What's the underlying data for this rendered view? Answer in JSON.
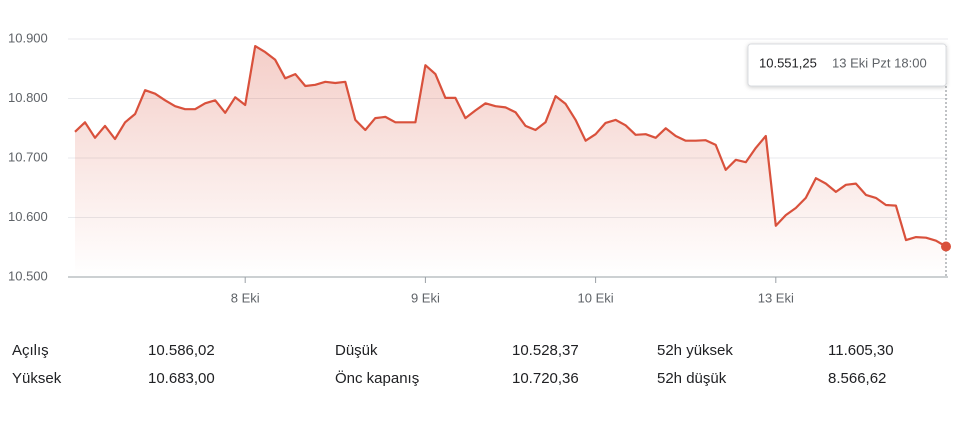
{
  "chart_data": {
    "type": "line",
    "color": "#d9513c",
    "grid": true,
    "categories": [
      null,
      null,
      null,
      null,
      null,
      null,
      null,
      null,
      null,
      null,
      null,
      null,
      null,
      null,
      null,
      null,
      null,
      "8 Eki",
      null,
      null,
      null,
      null,
      null,
      null,
      null,
      null,
      null,
      null,
      null,
      null,
      null,
      null,
      null,
      null,
      null,
      "9 Eki",
      null,
      null,
      null,
      null,
      null,
      null,
      null,
      null,
      null,
      null,
      null,
      null,
      null,
      null,
      null,
      null,
      "10 Eki",
      null,
      null,
      null,
      null,
      null,
      null,
      null,
      null,
      null,
      null,
      null,
      null,
      null,
      null,
      null,
      null,
      null,
      "13 Eki",
      null,
      null,
      null,
      null,
      null,
      null,
      null,
      null,
      null,
      null,
      null,
      null,
      null,
      null,
      null,
      null,
      null
    ],
    "values": [
      10744,
      10760,
      10734,
      10754,
      10732,
      10760,
      10774,
      10814,
      10808,
      10797,
      10787,
      10782,
      10782,
      10792,
      10797,
      10776,
      10802,
      10789,
      10888,
      10878,
      10865,
      10834,
      10841,
      10821,
      10823,
      10828,
      10826,
      10828,
      10764,
      10747,
      10767,
      10769,
      10760,
      10760,
      10760,
      10856,
      10841,
      10801,
      10801,
      10767,
      10780,
      10792,
      10787,
      10785,
      10777,
      10754,
      10747,
      10760,
      10804,
      10791,
      10764,
      10729,
      10740,
      10759,
      10764,
      10755,
      10739,
      10740,
      10734,
      10750,
      10737,
      10729,
      10729,
      10730,
      10722,
      10680,
      10697,
      10693,
      10717,
      10737,
      10586,
      10604,
      10616,
      10633,
      10666,
      10657,
      10643,
      10655,
      10657,
      10638,
      10633,
      10621,
      10620,
      10562,
      10567,
      10566,
      10561,
      10551.25
    ],
    "ylim": [
      10500,
      10900
    ],
    "yticks": [
      {
        "value": 10500,
        "label": "10.500"
      },
      {
        "value": 10600,
        "label": "10.600"
      },
      {
        "value": 10700,
        "label": "10.700"
      },
      {
        "value": 10800,
        "label": "10.800"
      },
      {
        "value": 10900,
        "label": "10.900"
      }
    ],
    "tooltip": {
      "value": "10.551,25",
      "time": "13 Eki Pzt 18:00"
    }
  },
  "stats": [
    {
      "label": "Açılış",
      "value": "10.586,02"
    },
    {
      "label": "Yüksek",
      "value": "10.683,00"
    },
    {
      "label": "Düşük",
      "value": "10.528,37"
    },
    {
      "label": "Önc kapanış",
      "value": "10.720,36"
    },
    {
      "label": "52h yüksek",
      "value": "11.605,30"
    },
    {
      "label": "52h düşük",
      "value": "8.566,62"
    }
  ]
}
